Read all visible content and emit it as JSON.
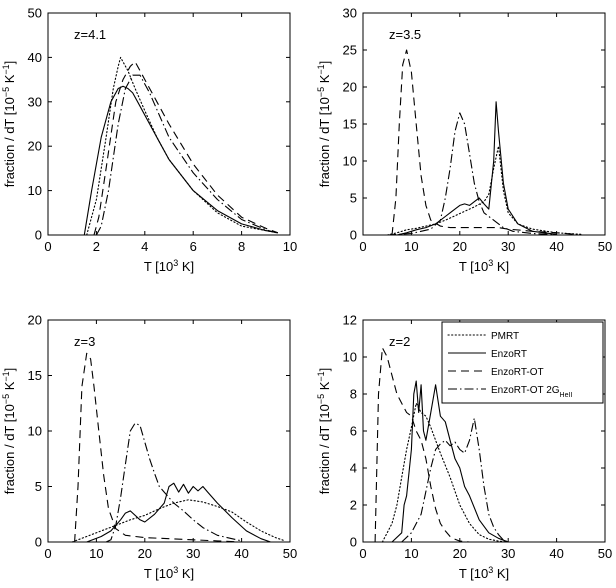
{
  "chart_data": [
    {
      "type": "line",
      "annotation": "z=4.1",
      "xlabel": "T [10",
      "xlabel_unit": " K]",
      "ylabel": "fraction / dT [10",
      "ylabel_unit": " K",
      "xlim": [
        0,
        10
      ],
      "ylim": [
        0,
        50
      ],
      "xticks": [
        0,
        2,
        4,
        6,
        8,
        10
      ],
      "yticks": [
        0,
        10,
        20,
        30,
        40,
        50
      ],
      "series": [
        {
          "name": "PMRT",
          "x": [
            1.6,
            2.0,
            2.4,
            2.7,
            2.9,
            3.0,
            3.1,
            3.3,
            3.6,
            4.0,
            4.5,
            5.0,
            6.0,
            7.0,
            8.0,
            9.0,
            9.5
          ],
          "y": [
            0,
            8,
            22,
            33,
            38,
            40,
            39,
            37,
            33,
            28,
            22,
            17,
            10,
            5,
            2,
            1,
            0.5
          ]
        },
        {
          "name": "EnzoRT",
          "x": [
            1.5,
            1.8,
            2.2,
            2.6,
            2.9,
            3.1,
            3.3,
            3.5,
            3.8,
            4.2,
            4.6,
            5.0,
            6.0,
            7.0,
            8.0,
            9.0,
            9.5
          ],
          "y": [
            0,
            10,
            22,
            30,
            33,
            33.5,
            33,
            32,
            29,
            25,
            21,
            17,
            10,
            5.5,
            2.5,
            1,
            0.5
          ]
        },
        {
          "name": "EnzoRT-OT",
          "x": [
            1.9,
            2.1,
            2.4,
            2.8,
            3.1,
            3.4,
            3.6,
            3.8,
            4.1,
            4.5,
            5.0,
            6.0,
            7.0,
            8.0,
            9.0,
            9.5
          ],
          "y": [
            0,
            4,
            15,
            30,
            35,
            38,
            39,
            37,
            34,
            30,
            25,
            16,
            9,
            4,
            1.5,
            0.5
          ]
        },
        {
          "name": "EnzoRT-OT 2G",
          "x": [
            2.0,
            2.2,
            2.5,
            2.9,
            3.2,
            3.5,
            3.8,
            4.2,
            4.6,
            5.0,
            6.0,
            7.0,
            8.0,
            9.0,
            9.5
          ],
          "y": [
            0,
            2,
            10,
            25,
            33,
            36,
            36,
            32,
            27,
            22,
            14,
            8,
            3.5,
            1.2,
            0.4
          ]
        }
      ]
    },
    {
      "type": "line",
      "annotation": "z=3.5",
      "xlabel": "T [10",
      "xlabel_unit": " K]",
      "ylabel": "fraction / dT [10",
      "ylabel_unit": " K",
      "xlim": [
        0,
        50
      ],
      "ylim": [
        0,
        30
      ],
      "xticks": [
        0,
        10,
        20,
        30,
        40,
        50
      ],
      "yticks": [
        0,
        5,
        10,
        15,
        20,
        25,
        30
      ],
      "series": [
        {
          "name": "PMRT",
          "x": [
            5,
            7,
            9,
            11,
            13,
            15,
            17,
            19,
            21,
            23,
            25,
            26,
            27,
            28,
            29,
            30,
            32,
            35,
            40,
            45
          ],
          "y": [
            0,
            0.3,
            0.7,
            0.9,
            1.2,
            1.5,
            2,
            2.6,
            3.2,
            3.8,
            4.5,
            5.5,
            9,
            12,
            6,
            3,
            1.5,
            0.8,
            0.3,
            0.1
          ]
        },
        {
          "name": "EnzoRT",
          "x": [
            7,
            9,
            11,
            13,
            15,
            17,
            18,
            19,
            20,
            21,
            22,
            23,
            24,
            25,
            26,
            27,
            27.5,
            28,
            29,
            30,
            32,
            35,
            40
          ],
          "y": [
            0,
            0.3,
            0.7,
            1,
            1.5,
            2.5,
            3,
            3.5,
            4,
            4.2,
            4,
            4.5,
            5,
            4.2,
            3.5,
            10,
            18,
            14,
            7,
            3.5,
            1.5,
            0.5,
            0.1
          ]
        },
        {
          "name": "EnzoRT-OT",
          "x": [
            6,
            6.8,
            7.5,
            8.2,
            9,
            10,
            11,
            12,
            13,
            14,
            16,
            18,
            20,
            22,
            24,
            26,
            28,
            30,
            35,
            40,
            44
          ],
          "y": [
            0,
            5,
            15,
            23,
            25,
            22,
            15,
            8,
            4,
            2,
            1.2,
            1,
            1,
            1,
            1,
            1,
            1,
            0.8,
            0.5,
            0.3,
            0.1
          ]
        },
        {
          "name": "EnzoRT-OT 2G",
          "x": [
            5,
            10,
            14,
            16,
            17,
            18,
            19,
            20,
            21,
            22,
            23,
            24,
            25,
            27,
            29,
            31,
            35,
            40
          ],
          "y": [
            0,
            0.2,
            0.8,
            2,
            5,
            9,
            14,
            16.5,
            15,
            11,
            7,
            4.5,
            3,
            2,
            1,
            0.5,
            0.2,
            0.05
          ]
        }
      ]
    },
    {
      "type": "line",
      "annotation": "z=3",
      "xlabel": "T [10",
      "xlabel_unit": " K]",
      "ylabel": "fraction / dT [10",
      "ylabel_unit": " K",
      "xlim": [
        0,
        50
      ],
      "ylim": [
        0,
        20
      ],
      "xticks": [
        0,
        10,
        20,
        30,
        40,
        50
      ],
      "yticks": [
        0,
        5,
        10,
        15,
        20
      ],
      "series": [
        {
          "name": "PMRT",
          "x": [
            5,
            8,
            11,
            14,
            17,
            20,
            23,
            26,
            29,
            32,
            35,
            38,
            41,
            44,
            47,
            49
          ],
          "y": [
            0,
            0.5,
            1,
            1.5,
            2,
            2.4,
            3,
            3.5,
            3.8,
            3.6,
            3.2,
            2.7,
            1.8,
            1,
            0.4,
            0.1
          ]
        },
        {
          "name": "EnzoRT",
          "x": [
            8,
            11,
            13,
            15,
            16,
            17,
            19,
            20,
            22,
            24,
            25,
            26,
            27,
            28,
            29,
            30,
            31,
            32,
            33,
            35,
            38,
            41,
            44,
            46
          ],
          "y": [
            0,
            0.5,
            1,
            2,
            2.6,
            2.8,
            2,
            1.8,
            2.5,
            3.5,
            5,
            5.3,
            4.5,
            5.2,
            4.4,
            5,
            4.6,
            5,
            4.5,
            3.5,
            2.2,
            1,
            0.3,
            0
          ]
        },
        {
          "name": "EnzoRT-OT",
          "x": [
            5.5,
            6.2,
            7,
            8,
            8.8,
            9.5,
            10.5,
            11.5,
            12.5,
            14,
            16,
            20,
            25,
            30,
            35,
            40
          ],
          "y": [
            0,
            5,
            14,
            17,
            16.5,
            14,
            10,
            6,
            3,
            1.2,
            0.6,
            0.4,
            0.3,
            0.2,
            0.1,
            0
          ]
        },
        {
          "name": "EnzoRT-OT 2G",
          "x": [
            12,
            13,
            14,
            15,
            16,
            17,
            18,
            19,
            20,
            21,
            22,
            23,
            24,
            25,
            26,
            28,
            30,
            32,
            35,
            40
          ],
          "y": [
            0,
            0.2,
            1.5,
            4,
            7,
            10,
            10.7,
            10.5,
            9,
            7.5,
            6.2,
            5,
            4.5,
            4,
            3.5,
            2.8,
            2,
            1.3,
            0.6,
            0.1
          ]
        }
      ]
    },
    {
      "type": "line",
      "annotation": "z=2",
      "xlabel": "T [10",
      "xlabel_unit": " K]",
      "ylabel": "fraction / dT [10",
      "ylabel_unit": " K",
      "xlim": [
        0,
        50
      ],
      "ylim": [
        0,
        12
      ],
      "xticks": [
        0,
        10,
        20,
        30,
        40,
        50
      ],
      "yticks": [
        0,
        2,
        4,
        6,
        8,
        10,
        12
      ],
      "legend_position": "top-right",
      "legend_sub": "HeII",
      "series": [
        {
          "name": "PMRT",
          "x": [
            4,
            6,
            7,
            8,
            9,
            10,
            11,
            12,
            13,
            14,
            15,
            16,
            18,
            20,
            22,
            24,
            26,
            28,
            30
          ],
          "y": [
            0,
            1,
            2,
            3.5,
            5,
            6.2,
            7.5,
            7,
            6.8,
            6.2,
            5.5,
            4.8,
            3.5,
            2,
            1,
            0.4,
            0.15,
            0.05,
            0
          ]
        },
        {
          "name": "EnzoRT",
          "x": [
            6,
            8,
            8.5,
            9,
            10,
            10.5,
            11,
            11.5,
            12,
            12.5,
            13,
            14,
            15,
            16,
            17,
            18,
            19,
            20,
            21,
            22,
            24,
            26,
            28,
            30
          ],
          "y": [
            0,
            0.5,
            2,
            2.5,
            5,
            8,
            8.7,
            7,
            8.5,
            6,
            5.5,
            7,
            8.5,
            6.8,
            6.5,
            5.5,
            4.5,
            4,
            3,
            2.5,
            1.2,
            0.5,
            0.2,
            0
          ]
        },
        {
          "name": "EnzoRT-OT",
          "x": [
            2.5,
            3.2,
            4,
            5,
            6,
            7,
            8,
            9,
            10,
            11,
            12,
            13,
            14,
            15,
            16,
            17,
            18,
            19,
            20,
            22
          ],
          "y": [
            0,
            8,
            10.5,
            10,
            9,
            8,
            7.5,
            7,
            6.8,
            6,
            5.5,
            4.5,
            3,
            1.8,
            1,
            0.6,
            0.3,
            0.15,
            0.05,
            0
          ]
        },
        {
          "name": "EnzoRT-OT 2G",
          "x": [
            8,
            10,
            12,
            14,
            15,
            16,
            17,
            18,
            19,
            20,
            21,
            22,
            23,
            24,
            25,
            26,
            27,
            28,
            29,
            30
          ],
          "y": [
            0,
            0.5,
            1.5,
            4,
            5,
            5.3,
            5.5,
            5.2,
            5.4,
            5,
            4.8,
            5.5,
            6.7,
            5,
            3,
            1.5,
            0.8,
            0.4,
            0.1,
            0
          ]
        }
      ]
    }
  ]
}
